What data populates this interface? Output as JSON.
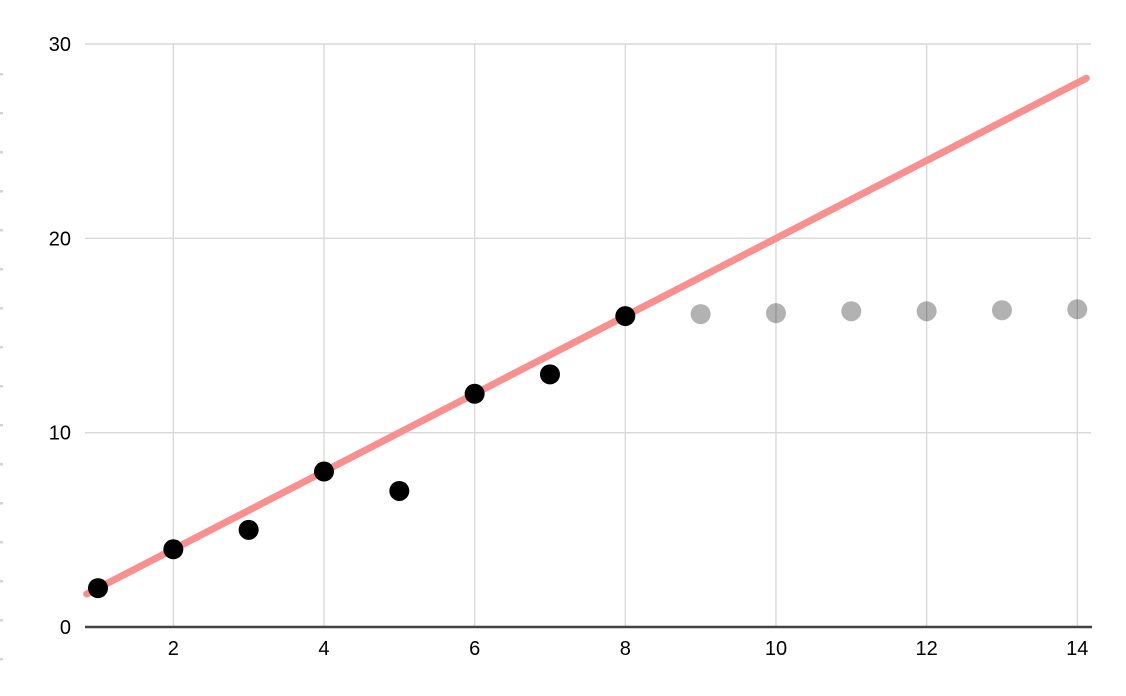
{
  "chart_data": {
    "type": "scatter",
    "title": "",
    "xlabel": "",
    "ylabel": "",
    "x_ticks": [
      2,
      4,
      6,
      8,
      10,
      12,
      14
    ],
    "y_ticks": [
      0,
      10,
      20,
      30
    ],
    "x_range": [
      0.83,
      14.17
    ],
    "y_range": [
      0,
      30
    ],
    "grid": true,
    "legend_position": "none",
    "series": [
      {
        "name": "black-points",
        "marker": "circle",
        "color": "#000000",
        "x": [
          1,
          2,
          3,
          4,
          5,
          6,
          7,
          8
        ],
        "y": [
          2,
          4,
          5,
          8,
          7,
          12,
          13,
          16
        ]
      },
      {
        "name": "gray-points",
        "marker": "circle",
        "color": "rgba(0,0,0,0.3)",
        "x": [
          9,
          10,
          11,
          12,
          13,
          14
        ],
        "y": [
          16.1,
          16.15,
          16.25,
          16.25,
          16.3,
          16.35
        ]
      }
    ],
    "trend_line": {
      "type": "linear",
      "slope": 2,
      "intercept": 0,
      "x_start": 0.85,
      "x_end": 14.12,
      "color": "#f89090"
    },
    "style": {
      "background": "#ffffff",
      "gridline_color": "#d9d9d9",
      "axis_color": "#424242",
      "label_color": "#000000",
      "label_font_size": 20,
      "point_radius": 10,
      "trend_stroke_width": 7,
      "gridline_width": 1.4,
      "axis_width": 2.6
    },
    "left_edge_tick_marks": {
      "count": 16,
      "color": "#d4d4d4"
    }
  }
}
